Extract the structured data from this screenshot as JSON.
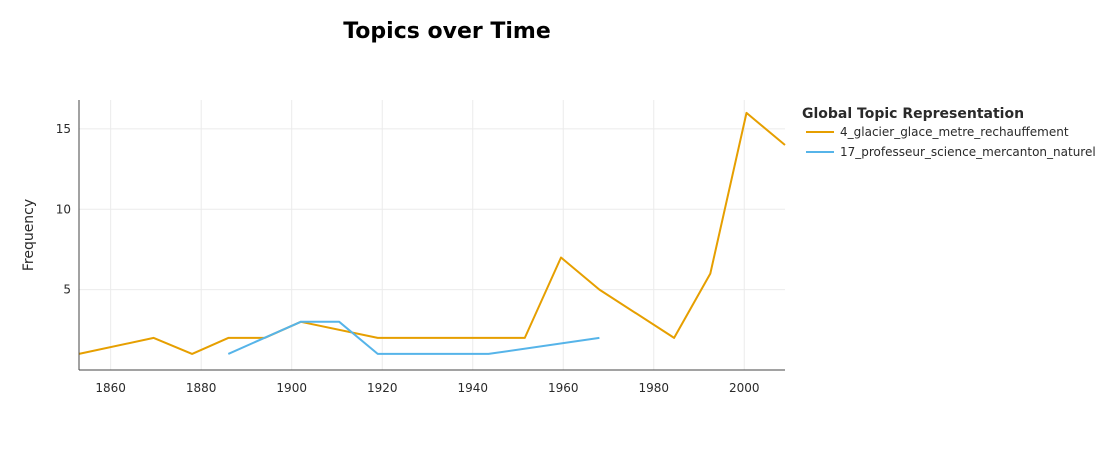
{
  "chart_data": {
    "type": "line",
    "title": "Topics over Time",
    "xlabel": "",
    "ylabel": "Frequency",
    "xlim": [
      1853,
      2009
    ],
    "ylim": [
      0,
      16.8
    ],
    "x_ticks": [
      1860,
      1880,
      1900,
      1920,
      1940,
      1960,
      1980,
      2000
    ],
    "y_ticks": [
      5,
      10,
      15
    ],
    "grid": true,
    "legend": {
      "title": "Global Topic Representation",
      "placement": "right"
    },
    "series": [
      {
        "name": "4_glacier_glace_metre_rechauffement",
        "color": "#E69F00",
        "x": [
          1853,
          1869.5,
          1878,
          1886,
          1894,
          1902,
          1919,
          1935,
          1951.5,
          1959.5,
          1968,
          1984.5,
          1992.5,
          2000.5,
          2009
        ],
        "y": [
          1,
          2,
          1,
          2,
          2,
          3,
          2,
          2,
          2,
          7,
          5,
          2,
          6,
          16,
          14
        ]
      },
      {
        "name": "17_professeur_science_mercanton_naturel",
        "color": "#56B4E9",
        "x": [
          1886,
          1902,
          1910.5,
          1919,
          1943.5,
          1968
        ],
        "y": [
          1,
          3,
          3,
          1,
          1,
          2
        ]
      }
    ]
  }
}
